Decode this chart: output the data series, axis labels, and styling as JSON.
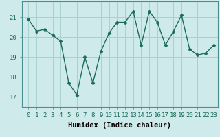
{
  "x": [
    0,
    1,
    2,
    3,
    4,
    5,
    6,
    7,
    8,
    9,
    10,
    11,
    12,
    13,
    14,
    15,
    16,
    17,
    18,
    19,
    20,
    21,
    22,
    23
  ],
  "y": [
    20.9,
    20.3,
    20.4,
    20.1,
    19.8,
    17.7,
    17.1,
    19.0,
    17.7,
    19.3,
    20.2,
    20.75,
    20.75,
    21.3,
    19.6,
    21.3,
    20.75,
    19.6,
    20.3,
    21.1,
    19.4,
    19.1,
    19.2,
    19.6
  ],
  "line_color": "#1a6b5a",
  "marker": "D",
  "markersize": 2.5,
  "linewidth": 1.0,
  "xlabel": "Humidex (Indice chaleur)",
  "ylim": [
    16.5,
    21.8
  ],
  "yticks": [
    17,
    18,
    19,
    20,
    21
  ],
  "xticks": [
    0,
    1,
    2,
    3,
    4,
    5,
    6,
    7,
    8,
    9,
    10,
    11,
    12,
    13,
    14,
    15,
    16,
    17,
    18,
    19,
    20,
    21,
    22,
    23
  ],
  "bg_color": "#ceeaea",
  "grid_color": "#aad0d0",
  "tick_fontsize": 6.5,
  "xlabel_fontsize": 7.5
}
